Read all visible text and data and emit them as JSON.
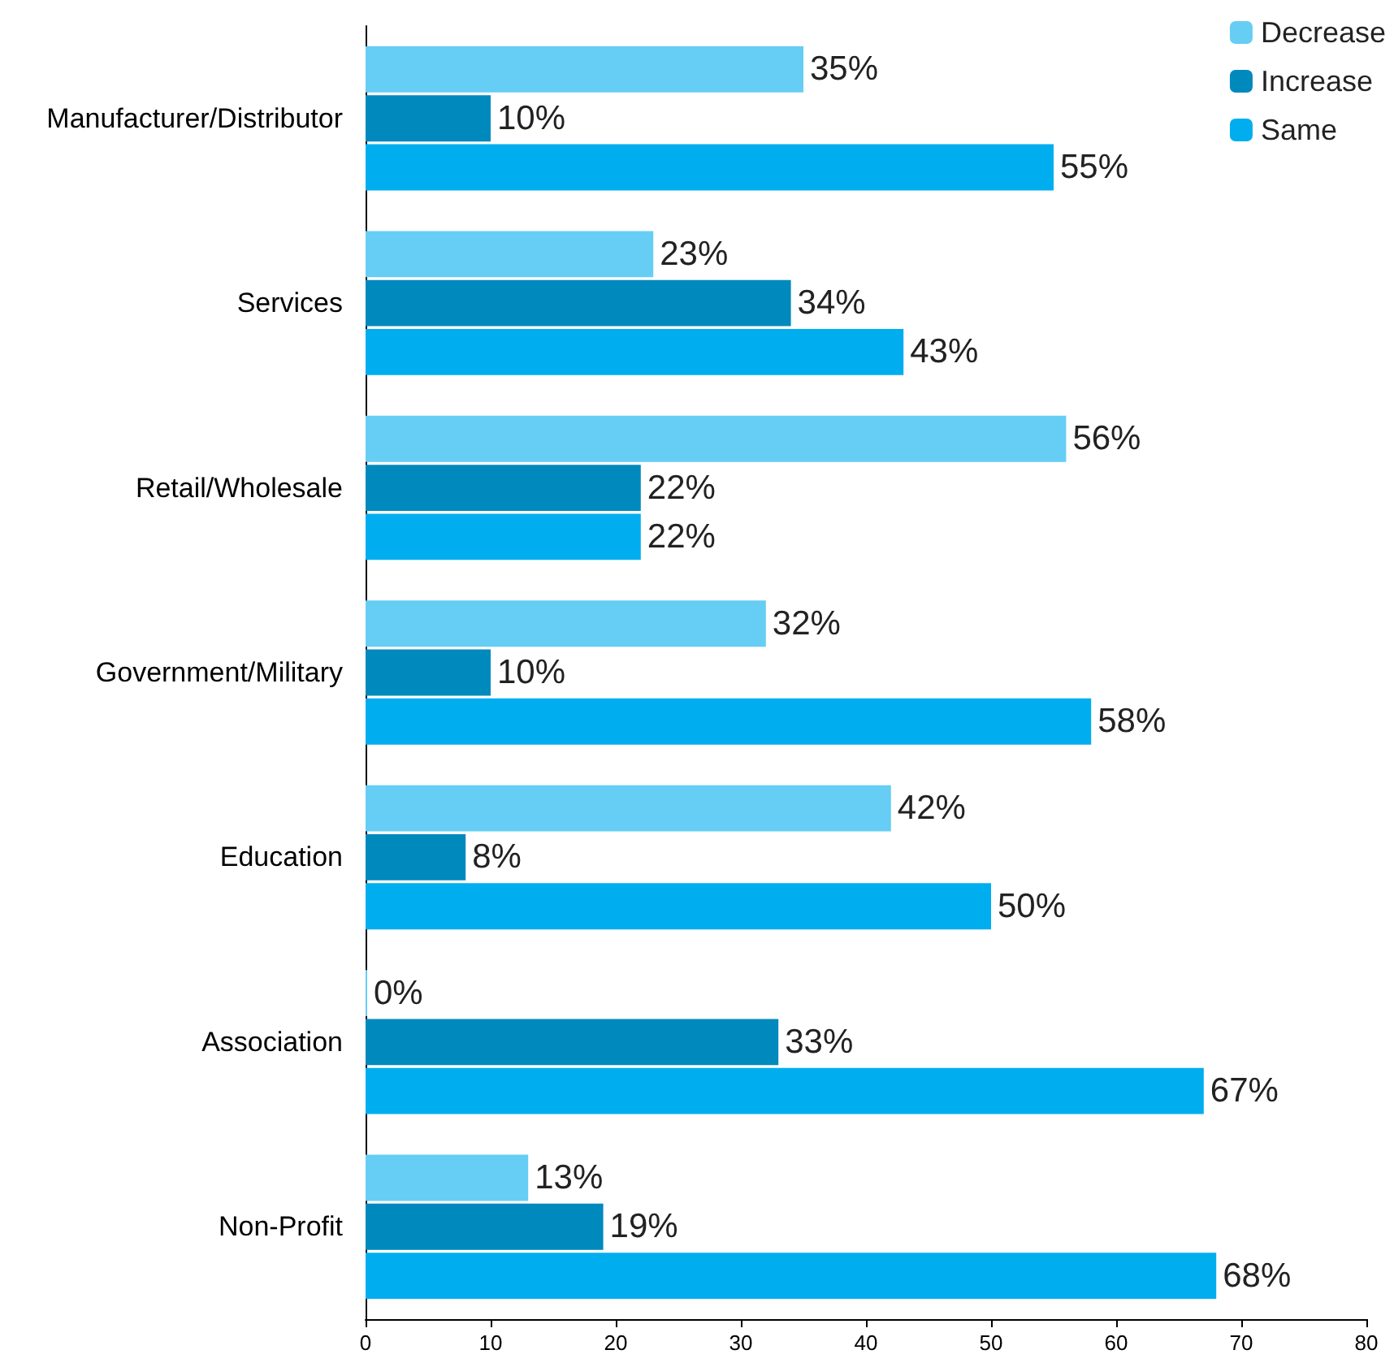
{
  "chart_data": {
    "type": "bar",
    "orientation": "horizontal",
    "categories": [
      "Manufacturer/Distributor",
      "Services",
      "Retail/Wholesale",
      "Government/Military",
      "Education",
      "Association",
      "Non-Profit"
    ],
    "series": [
      {
        "name": "Decrease",
        "color": "#66cdf5",
        "values": [
          35,
          23,
          56,
          32,
          42,
          0,
          13
        ],
        "value_labels": [
          "35%",
          "23%",
          "56%",
          "32%",
          "42%",
          "0%",
          "13%"
        ]
      },
      {
        "name": "Increase",
        "color": "#0089bd",
        "values": [
          10,
          34,
          22,
          10,
          8,
          33,
          19
        ],
        "value_labels": [
          "10%",
          "34%",
          "22%",
          "10%",
          "8%",
          "33%",
          "19%"
        ]
      },
      {
        "name": "Same",
        "color": "#00aeef",
        "values": [
          55,
          43,
          22,
          58,
          50,
          67,
          68
        ],
        "value_labels": [
          "55%",
          "43%",
          "22%",
          "58%",
          "50%",
          "67%",
          "68%"
        ]
      }
    ],
    "xlim": [
      0,
      80
    ],
    "xticks": [
      0,
      10,
      20,
      30,
      40,
      50,
      60,
      70,
      80
    ],
    "grid": false,
    "legend": "top right"
  }
}
